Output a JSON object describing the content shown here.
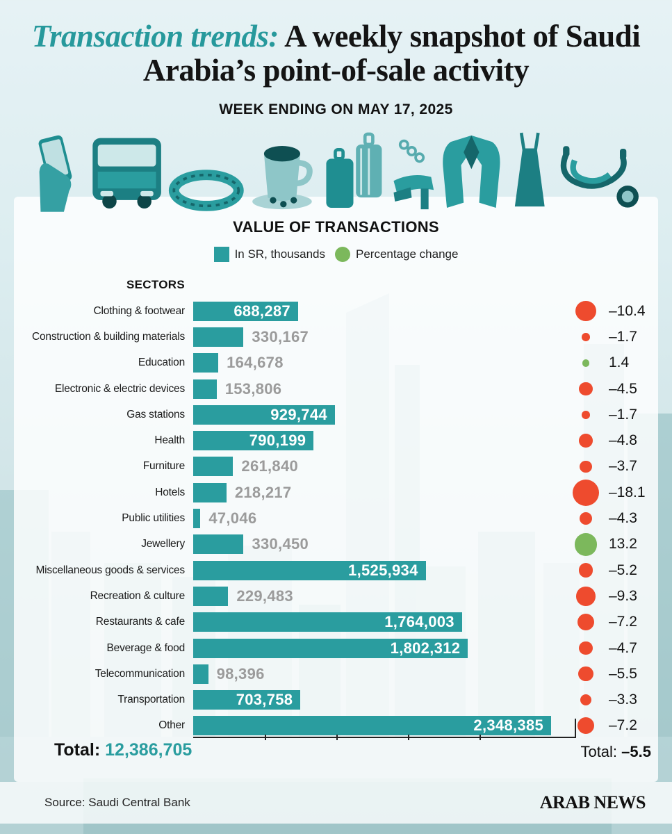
{
  "header": {
    "title_accent": "Transaction trends:",
    "title_rest": " A weekly snapshot of Saudi Arabia’s point-of-sale activity",
    "subtitle": "WEEK ENDING ON MAY 17, 2025"
  },
  "icon_strip": [
    "phone-icon",
    "bus-icon",
    "bracelet-icon",
    "coffee-icon",
    "luggage-icon",
    "heels-icon",
    "jacket-icon",
    "dress-icon",
    "stethoscope-icon"
  ],
  "chart": {
    "title": "VALUE OF TRANSACTIONS",
    "legend_value_label": "In SR, thousands",
    "legend_pct_label": "Percentage change",
    "sectors_label": "SECTORS"
  },
  "chart_data": {
    "type": "bar",
    "orientation": "horizontal",
    "title": "VALUE OF TRANSACTIONS",
    "categories": [
      "Clothing & footwear",
      "Construction & building materials",
      "Education",
      "Electronic & electric devices",
      "Gas stations",
      "Health",
      "Furniture",
      "Hotels",
      "Public utilities",
      "Jewellery",
      "Miscellaneous goods & services",
      "Recreation & culture",
      "Restaurants & cafe",
      "Beverage & food",
      "Telecommunication",
      "Transportation",
      "Other"
    ],
    "series": [
      {
        "name": "Value of transactions (SR, thousands)",
        "values": [
          688287,
          330167,
          164678,
          153806,
          929744,
          790199,
          261840,
          218217,
          47046,
          330450,
          1525934,
          229483,
          1764003,
          1802312,
          98396,
          703758,
          2348385
        ]
      },
      {
        "name": "Percentage change",
        "values": [
          -10.4,
          -1.7,
          1.4,
          -4.5,
          -1.7,
          -4.8,
          -3.7,
          -18.1,
          -4.3,
          13.2,
          -5.2,
          -9.3,
          -7.2,
          -4.7,
          -5.5,
          -3.3,
          -7.2
        ]
      }
    ],
    "legend_position": "top",
    "grid": false,
    "x_axis": "unlabeled baseline with ticks at fifths of the longest bar"
  },
  "totals": {
    "value_label": "Total:",
    "value": "12,386,705",
    "pct_label": "Total:",
    "pct": "–5.5"
  },
  "footer": {
    "source": "Source: Saudi Central Bank",
    "brand": "ARAB NEWS"
  },
  "colors": {
    "teal": "#2A9D9F",
    "green": "#7CB85C",
    "red": "#EE4B2E",
    "gray_value": "#9B9B9B",
    "title_accent": "#27999C"
  }
}
